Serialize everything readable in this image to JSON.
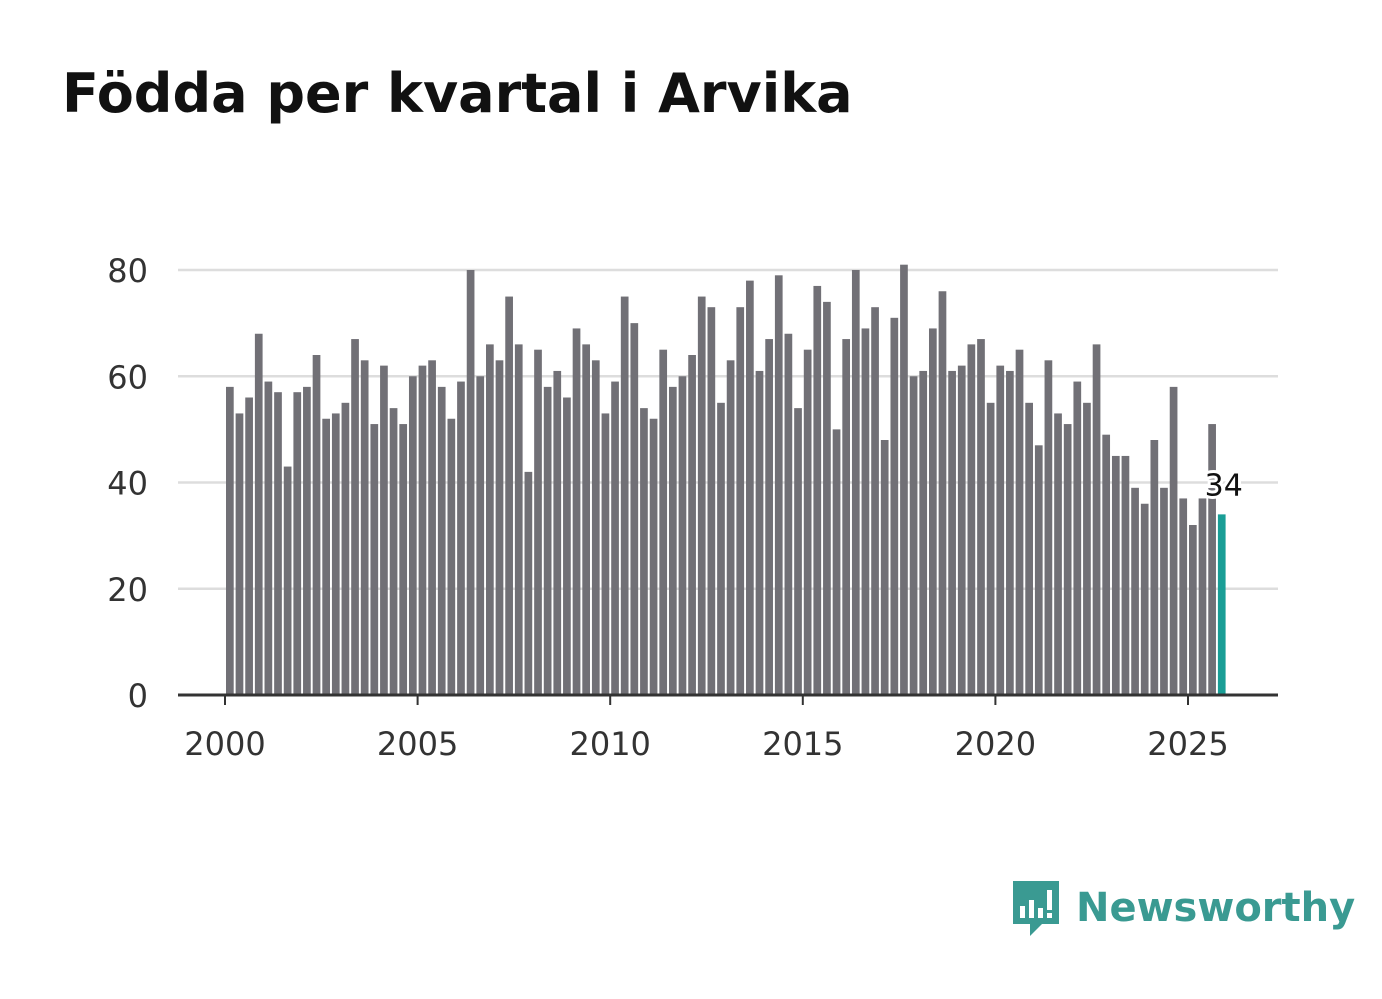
{
  "chart_data": {
    "type": "bar",
    "title": "Födda per kvartal i Arvika",
    "xlabel": "",
    "ylabel": "",
    "ylim": [
      0,
      80
    ],
    "yticks": [
      0,
      20,
      40,
      60,
      80
    ],
    "xticks": [
      2000,
      2005,
      2010,
      2015,
      2020,
      2025
    ],
    "xlim": [
      2000,
      2027.25
    ],
    "grid": true,
    "start_year": 2000,
    "values": [
      58,
      53,
      56,
      68,
      59,
      57,
      43,
      57,
      58,
      64,
      52,
      53,
      55,
      67,
      63,
      51,
      62,
      54,
      51,
      60,
      62,
      63,
      58,
      52,
      59,
      80,
      60,
      66,
      63,
      75,
      66,
      42,
      65,
      58,
      61,
      56,
      69,
      66,
      63,
      53,
      59,
      75,
      70,
      54,
      52,
      65,
      58,
      60,
      64,
      75,
      73,
      55,
      63,
      73,
      78,
      61,
      67,
      79,
      68,
      54,
      65,
      77,
      74,
      50,
      67,
      80,
      69,
      73,
      48,
      71,
      81,
      60,
      61,
      69,
      76,
      61,
      62,
      66,
      67,
      55,
      62,
      61,
      65,
      55,
      47,
      63,
      53,
      51,
      59,
      55,
      66,
      49,
      45,
      45,
      39,
      36,
      48,
      39,
      58,
      37,
      32,
      37,
      51,
      34
    ],
    "highlight_index": 103,
    "highlight_label": "34",
    "colors": {
      "bar": "#717076",
      "highlight": "#1a9e96",
      "grid": "#dddddd",
      "axis": "#333333"
    }
  },
  "brand": {
    "name": "Newsworthy",
    "color": "#3a9a92"
  }
}
